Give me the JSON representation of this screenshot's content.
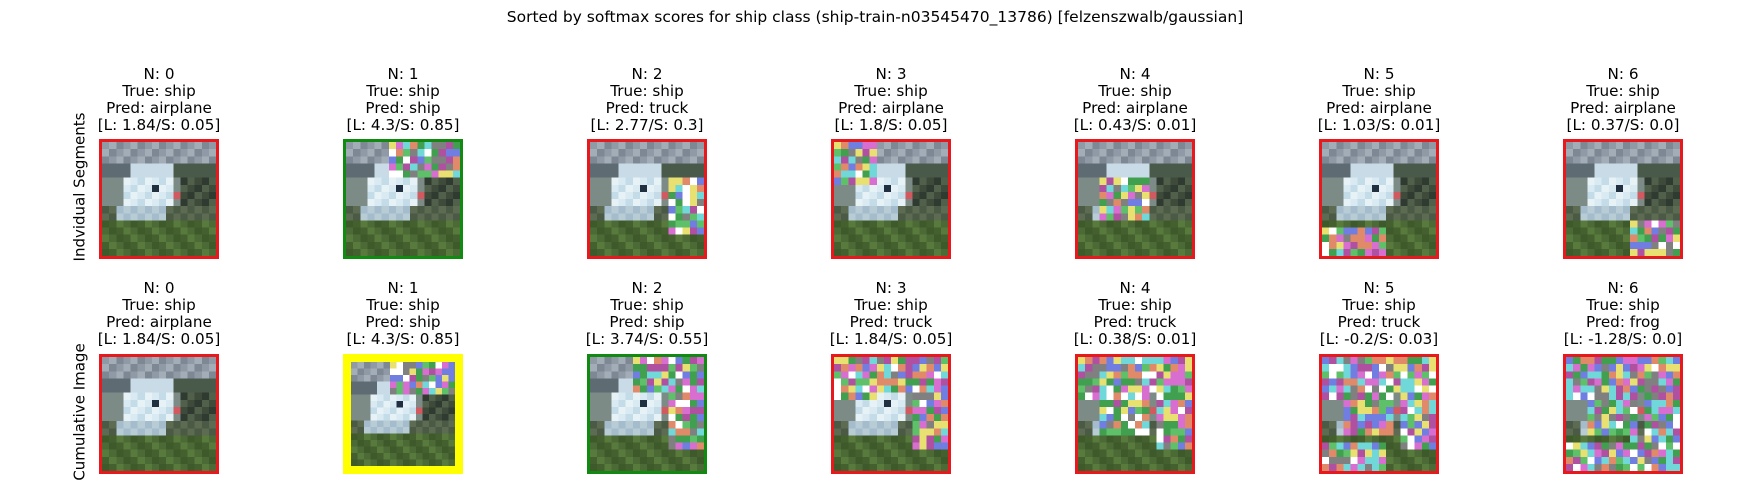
{
  "title": "Sorted by softmax scores for ship class (ship-train-n03545470_13786) [felzenszwalb/gaussian]",
  "rows": [
    {
      "label": "Indvidual Segments",
      "cells": [
        {
          "n": "N: 0",
          "true": "True: ship",
          "pred": "Pred: airplane",
          "score": "[L: 1.84/S: 0.05]",
          "frame": "red",
          "noise": []
        },
        {
          "n": "N: 1",
          "true": "True: ship",
          "pred": "Pred: ship",
          "score": "[L: 4.3/S: 0.85]",
          "frame": "green",
          "noise": [
            "top"
          ]
        },
        {
          "n": "N: 2",
          "true": "True: ship",
          "pred": "Pred: truck",
          "score": "[L: 2.77/S: 0.3]",
          "frame": "red",
          "noise": [
            "right"
          ]
        },
        {
          "n": "N: 3",
          "true": "True: ship",
          "pred": "Pred: airplane",
          "score": "[L: 1.8/S: 0.05]",
          "frame": "red",
          "noise": [
            "topleft"
          ]
        },
        {
          "n": "N: 4",
          "true": "True: ship",
          "pred": "Pred: airplane",
          "score": "[L: 0.43/S: 0.01]",
          "frame": "red",
          "noise": [
            "center"
          ]
        },
        {
          "n": "N: 5",
          "true": "True: ship",
          "pred": "Pred: airplane",
          "score": "[L: 1.03/S: 0.01]",
          "frame": "red",
          "noise": [
            "bottom"
          ]
        },
        {
          "n": "N: 6",
          "true": "True: ship",
          "pred": "Pred: airplane",
          "score": "[L: 0.37/S: 0.0]",
          "frame": "red",
          "noise": [
            "bottomright"
          ]
        }
      ]
    },
    {
      "label": "Cumulative Image",
      "cells": [
        {
          "n": "N: 0",
          "true": "True: ship",
          "pred": "Pred: airplane",
          "score": "[L: 1.84/S: 0.05]",
          "frame": "red",
          "noise": []
        },
        {
          "n": "N: 1",
          "true": "True: ship",
          "pred": "Pred: ship",
          "score": "[L: 4.3/S: 0.85]",
          "frame": "yellow",
          "noise": [
            "top"
          ]
        },
        {
          "n": "N: 2",
          "true": "True: ship",
          "pred": "Pred: ship",
          "score": "[L: 3.74/S: 0.55]",
          "frame": "green",
          "noise": [
            "top",
            "right"
          ]
        },
        {
          "n": "N: 3",
          "true": "True: ship",
          "pred": "Pred: truck",
          "score": "[L: 1.84/S: 0.05]",
          "frame": "red",
          "noise": [
            "top",
            "right",
            "topleft"
          ]
        },
        {
          "n": "N: 4",
          "true": "True: ship",
          "pred": "Pred: truck",
          "score": "[L: 0.38/S: 0.01]",
          "frame": "red",
          "noise": [
            "top",
            "right",
            "topleft",
            "center"
          ]
        },
        {
          "n": "N: 5",
          "true": "True: ship",
          "pred": "Pred: truck",
          "score": "[L: -0.2/S: 0.03]",
          "frame": "red",
          "noise": [
            "top",
            "right",
            "topleft",
            "center",
            "bottom"
          ]
        },
        {
          "n": "N: 6",
          "true": "True: ship",
          "pred": "Pred: frog",
          "score": "[L: -1.28/S: 0.0]",
          "frame": "red",
          "noise": [
            "top",
            "right",
            "topleft",
            "center",
            "bottom",
            "bottomright"
          ]
        }
      ]
    }
  ],
  "frame_colors": {
    "red": "#e8191d",
    "green": "#118a11",
    "yellow": "#ffff00"
  }
}
